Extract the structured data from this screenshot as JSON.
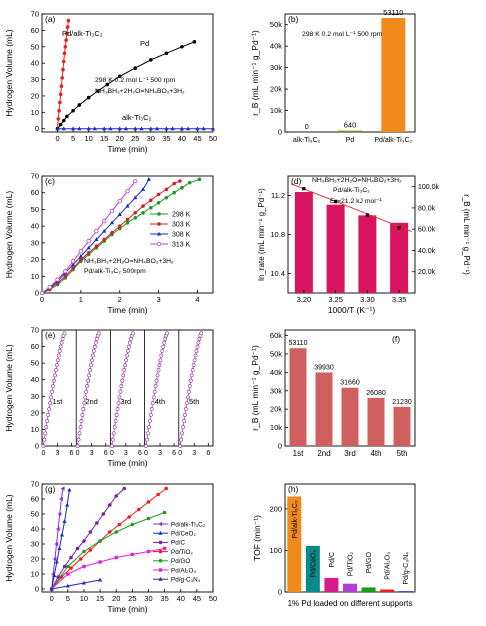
{
  "chart_data": [
    {
      "panel": "(a)",
      "type": "line",
      "xlabel": "Time (min)",
      "ylabel": "Hydrogen Volume (mL)",
      "xlim": [
        -5,
        50
      ],
      "ylim": [
        -2,
        70
      ],
      "xticks": [
        0,
        5,
        10,
        15,
        20,
        25,
        30,
        35,
        40,
        45,
        50
      ],
      "yticks": [
        0,
        10,
        20,
        30,
        40,
        50,
        60,
        70
      ],
      "conditions": "298 K   0.2 mol L⁻¹   500 rpm",
      "equation": "NH₃BH₃+2H₂O=NH₄BO₂+3H₂",
      "series": [
        {
          "name": "Pd/alk-Ti₃C₂",
          "color": "#e8201c",
          "marker": "circle",
          "x": [
            0,
            0.25,
            0.5,
            0.75,
            1,
            1.25,
            1.5,
            1.75,
            2,
            2.25,
            2.5,
            2.75,
            3,
            3.25,
            3.5
          ],
          "y": [
            0,
            6,
            11,
            16,
            21,
            26,
            31,
            36,
            41,
            46,
            50,
            54,
            58,
            62,
            66
          ]
        },
        {
          "name": "Pd",
          "color": "#000000",
          "marker": "circle",
          "x": [
            0,
            1,
            2,
            3,
            5,
            7,
            10,
            13,
            16,
            20,
            25,
            30,
            35,
            40,
            44
          ],
          "y": [
            0,
            2.5,
            5,
            7.5,
            11,
            14.5,
            19,
            23,
            27,
            32,
            37,
            42,
            46,
            50,
            53
          ]
        },
        {
          "name": "alk-Ti₃C₂",
          "color": "#1a2cc8",
          "marker": "triangle",
          "x": [
            0,
            2,
            5,
            7,
            10,
            12,
            15,
            17,
            20,
            22,
            25,
            27,
            30,
            32,
            35,
            37,
            40,
            42,
            45,
            47,
            50
          ],
          "y": [
            0,
            0,
            0,
            0,
            0,
            0,
            0,
            0,
            0,
            0,
            0,
            0,
            0,
            0,
            0,
            0,
            0,
            0,
            0,
            0,
            0
          ]
        }
      ]
    },
    {
      "panel": "(b)",
      "type": "bar",
      "ylabel": "r_B (mL min⁻¹ g_Pd⁻¹)",
      "conditions": "298 K   0.2 mol L⁻¹   500 rpm",
      "categories": [
        "alk-Ti₃C₂",
        "Pd",
        "Pd/alk-Ti₃C₂"
      ],
      "values": [
        0,
        640,
        53110
      ],
      "value_labels": [
        "0",
        "640",
        "53110"
      ],
      "colors": [
        "#7a7a7a",
        "#8c8c1a",
        "#f08a1a"
      ],
      "ylim": [
        0,
        55000
      ],
      "yticks": [
        0,
        10000,
        20000,
        30000,
        40000,
        50000
      ],
      "ytick_labels": [
        "0",
        "10k",
        "20k",
        "30k",
        "40k",
        "50k"
      ]
    },
    {
      "panel": "(c)",
      "type": "line",
      "xlabel": "Time (min)",
      "ylabel": "Hydrogen Volume (mL)",
      "xlim": [
        0,
        4.4
      ],
      "ylim": [
        0,
        70
      ],
      "xticks": [
        0,
        1,
        2,
        3,
        4
      ],
      "yticks": [
        0,
        10,
        20,
        30,
        40,
        50,
        60,
        70
      ],
      "equation": "NH₃BH₃+2H₂O=NH₄BO₂+3H₂",
      "catalyst": "Pd/alk-Ti₃C₂  500rpm",
      "series": [
        {
          "name": "298 K",
          "color": "#1e9a1e",
          "marker": "circle",
          "x": [
            0,
            0.2,
            0.4,
            0.6,
            0.8,
            1,
            1.2,
            1.4,
            1.6,
            1.8,
            2,
            2.2,
            2.4,
            2.6,
            2.8,
            3,
            3.2,
            3.4,
            3.6,
            3.8,
            4.05
          ],
          "y": [
            0,
            2,
            5,
            9,
            14,
            19,
            23,
            27,
            31,
            35,
            38.5,
            42,
            45,
            48,
            51,
            54,
            57,
            60,
            63,
            66,
            68
          ]
        },
        {
          "name": "303 K",
          "color": "#d0202a",
          "marker": "circle",
          "x": [
            0,
            0.2,
            0.4,
            0.6,
            0.8,
            1,
            1.2,
            1.4,
            1.6,
            1.8,
            2,
            2.2,
            2.4,
            2.6,
            2.8,
            3,
            3.2,
            3.4,
            3.55
          ],
          "y": [
            0,
            2.5,
            6,
            10,
            15,
            20,
            24,
            28,
            32,
            36,
            40,
            44,
            48,
            52,
            55.5,
            59,
            62,
            65.5,
            67
          ]
        },
        {
          "name": "308 K",
          "color": "#1a2cc8",
          "marker": "triangle",
          "x": [
            0,
            0.2,
            0.4,
            0.6,
            0.8,
            1,
            1.2,
            1.4,
            1.6,
            1.8,
            2,
            2.2,
            2.4,
            2.6,
            2.75
          ],
          "y": [
            0,
            3,
            7,
            12,
            17,
            22,
            27,
            32,
            37,
            42,
            47,
            52,
            57,
            62,
            68
          ]
        },
        {
          "name": "313 K",
          "color": "#c040d0",
          "marker": "circle-open",
          "x": [
            0,
            0.2,
            0.4,
            0.6,
            0.8,
            1,
            1.2,
            1.4,
            1.6,
            1.8,
            2,
            2.2,
            2.4
          ],
          "y": [
            0,
            3.5,
            8,
            13,
            19,
            25,
            31,
            37,
            43,
            49,
            55,
            61,
            67
          ]
        }
      ]
    },
    {
      "panel": "(d)",
      "type": "bar",
      "xlabel": "1000/T (K⁻¹)",
      "ylabel": "ln_rate (mL min⁻¹ g_Pd⁻¹)",
      "ylabel_right": "r_B (mL min⁻¹ g_Pd⁻¹)",
      "equation": "NH₃BH₃+2H₂O=NH₄BO₂+3H₂",
      "catalyst": "Pd/alk-Ti₃C₂",
      "annotation": "Eₐ=21.2 kJ mol⁻¹",
      "categories": [
        "3.20",
        "3.25",
        "3.30",
        "3.35"
      ],
      "values": [
        95000,
        83000,
        73000,
        66000
      ],
      "ln_points": {
        "x": [
          3.2,
          3.25,
          3.3,
          3.35
        ],
        "y": [
          11.27,
          11.14,
          11.0,
          10.87
        ]
      },
      "fit": {
        "x": [
          3.18,
          3.37
        ],
        "y": [
          11.32,
          10.83
        ]
      },
      "ylim_left": [
        10.2,
        11.4
      ],
      "yticks_left": [
        10.4,
        10.8,
        11.2
      ],
      "ylim_right": [
        0,
        110000
      ],
      "yticks_right": [
        20000,
        40000,
        60000,
        80000,
        100000
      ],
      "ytick_right_labels": [
        "20.0k",
        "40.0k",
        "60.0k",
        "80.0k",
        "100.0k"
      ],
      "bar_color": "#d8145e",
      "line_color": "#e23030"
    },
    {
      "panel": "(e)",
      "type": "line",
      "xlabel": "Time (min)",
      "ylabel": "Hydrogen Volume (mL)",
      "cycles": [
        "1st",
        "2nd",
        "3rd",
        "4th",
        "5th"
      ],
      "xticks": [
        0,
        3,
        6
      ],
      "yticks": [
        0,
        10,
        20,
        30,
        40,
        50,
        60,
        70
      ],
      "ylim": [
        0,
        70
      ],
      "cycle_end_min": 4.5,
      "cycle_end_ml": 68
    },
    {
      "panel": "(f)",
      "type": "bar",
      "ylabel": "r_B (mL min⁻¹ g_Pd⁻¹)",
      "categories": [
        "1st",
        "2nd",
        "3rd",
        "4th",
        "5th"
      ],
      "values": [
        53110,
        39930,
        31660,
        26080,
        21230
      ],
      "value_labels": [
        "53110",
        "39930",
        "31660",
        "26080",
        "21230"
      ],
      "ylim": [
        0,
        63000
      ],
      "yticks": [
        0,
        10000,
        20000,
        30000,
        40000,
        50000,
        60000
      ],
      "ytick_labels": [
        "0",
        "10k",
        "20k",
        "30k",
        "40k",
        "50k",
        "60k"
      ],
      "bar_color": "#d06060"
    },
    {
      "panel": "(g)",
      "type": "line",
      "xlabel": "Time (min)",
      "ylabel": "Hydrogen Volume (mL)",
      "xlim": [
        -3,
        50
      ],
      "ylim": [
        -2,
        70
      ],
      "xticks": [
        0,
        5,
        10,
        15,
        20,
        25,
        30,
        35,
        40,
        45,
        50
      ],
      "yticks": [
        0,
        10,
        20,
        30,
        40,
        50,
        60,
        70
      ],
      "series": [
        {
          "name": "Pd/alk-Ti₃C₂",
          "color": "#8a2be2",
          "marker": "triangle-left",
          "x": [
            0,
            0.5,
            1,
            1.5,
            2,
            2.5,
            3,
            3.5
          ],
          "y": [
            0,
            10,
            20,
            30,
            40,
            50,
            60,
            67
          ]
        },
        {
          "name": "Pd/CeO₂",
          "color": "#1a2cc8",
          "marker": "triangle",
          "x": [
            0,
            0.8,
            1.6,
            2.4,
            3.2,
            4,
            4.8,
            5.5
          ],
          "y": [
            0,
            9,
            18,
            27,
            36,
            45,
            56,
            66
          ]
        },
        {
          "name": "Pd/C",
          "color": "#7a1fa0",
          "marker": "circle",
          "x": [
            0,
            2,
            4,
            6,
            8,
            10,
            12,
            14,
            16,
            18,
            20,
            22.5
          ],
          "y": [
            0,
            8,
            15,
            21,
            27,
            32,
            38,
            44,
            50,
            56,
            62,
            67
          ]
        },
        {
          "name": "Pd/TiO₂",
          "color": "#e8201c",
          "marker": "circle",
          "x": [
            0,
            3,
            6,
            9,
            12,
            15,
            18,
            21,
            24,
            27,
            30,
            33,
            35.5
          ],
          "y": [
            0,
            8,
            14,
            20,
            26,
            32,
            38,
            43,
            48,
            53,
            58,
            63,
            67
          ]
        },
        {
          "name": "Pd/GO",
          "color": "#1e9a1e",
          "marker": "circle",
          "x": [
            0,
            5,
            10,
            15,
            20,
            25,
            30,
            35
          ],
          "y": [
            0,
            15,
            25,
            32,
            38,
            43,
            47,
            51
          ]
        },
        {
          "name": "Pd/Al₂O₃",
          "color": "#e020d0",
          "marker": "square",
          "x": [
            0,
            5,
            10,
            15,
            20,
            25,
            30,
            35
          ],
          "y": [
            0,
            10,
            15,
            18,
            21,
            23,
            25,
            27
          ]
        },
        {
          "name": "Pd/g-C₃N₄",
          "color": "#2a2ab0",
          "marker": "triangle",
          "x": [
            0,
            5,
            10,
            15
          ],
          "y": [
            0,
            2,
            4,
            6
          ]
        }
      ]
    },
    {
      "panel": "(h)",
      "type": "bar",
      "ylabel": "TOF (min⁻¹)",
      "xlabel": "1% Pd loaded on different supports",
      "categories": [
        "Pd/alk-Ti₃C₂",
        "Pd/CeO₂",
        "Pd/C",
        "Pd/TiO₂",
        "Pd/GO",
        "Pd/Al₂O₃",
        "Pd/g-C₃N₄"
      ],
      "values": [
        230,
        111,
        34,
        20,
        11,
        6,
        2
      ],
      "colors": [
        "#f08a1a",
        "#0a8a8a",
        "#d81b8a",
        "#b040d0",
        "#1e9a1e",
        "#e8201c",
        "#2a2ab0"
      ],
      "ylim": [
        0,
        260
      ],
      "yticks": [
        0,
        100,
        200
      ]
    }
  ]
}
